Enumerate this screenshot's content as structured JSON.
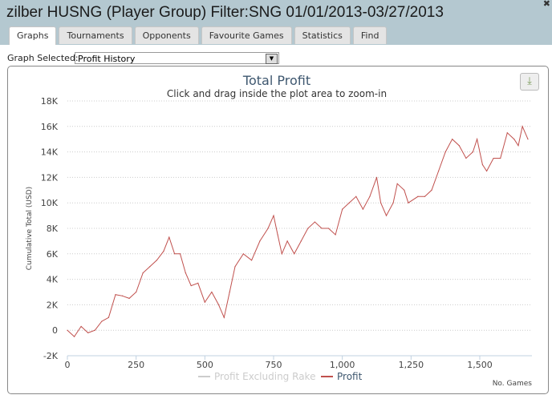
{
  "window": {
    "title": "zilber HUSNG (Player Group) Filter:SNG 01/01/2013-03/27/2013",
    "close_icon": "close-icon"
  },
  "tabs": [
    {
      "label": "Graphs",
      "active": true
    },
    {
      "label": "Tournaments"
    },
    {
      "label": "Opponents"
    },
    {
      "label": "Favourite Games"
    },
    {
      "label": "Statistics"
    },
    {
      "label": "Find"
    }
  ],
  "graph_select": {
    "label": "Graph Selected:",
    "value": "Profit History"
  },
  "chart_data": {
    "type": "line",
    "title": "Total Profit",
    "subtitle": "Click and drag inside the plot area to zoom-in",
    "xlabel": "No. Games",
    "ylabel": "Cumulative Total (USD)",
    "xlim": [
      0,
      1690
    ],
    "ylim": [
      -2000,
      18000
    ],
    "x_ticks": [
      "0",
      "250",
      "500",
      "750",
      "1,000",
      "1,250",
      "1,500"
    ],
    "y_ticks": [
      "-2K",
      "0",
      "2K",
      "4K",
      "6K",
      "8K",
      "10K",
      "12K",
      "14K",
      "16K",
      "18K"
    ],
    "grid": "horizontal dotted",
    "legend": [
      {
        "name": "Profit Excluding Rake",
        "color": "#cccccc",
        "hidden": true
      },
      {
        "name": "Profit",
        "color": "#c0504d"
      }
    ],
    "legend_position": "bottom",
    "series": [
      {
        "name": "Profit",
        "color": "#c0504d",
        "x": [
          0,
          25,
          50,
          75,
          100,
          125,
          150,
          175,
          200,
          225,
          250,
          275,
          300,
          325,
          350,
          370,
          390,
          410,
          430,
          450,
          475,
          500,
          525,
          550,
          570,
          590,
          610,
          640,
          670,
          700,
          730,
          750,
          765,
          780,
          800,
          825,
          850,
          875,
          900,
          925,
          950,
          975,
          1000,
          1025,
          1050,
          1075,
          1100,
          1125,
          1140,
          1160,
          1185,
          1200,
          1225,
          1240,
          1275,
          1300,
          1325,
          1350,
          1375,
          1400,
          1425,
          1450,
          1475,
          1490,
          1510,
          1525,
          1550,
          1575,
          1600,
          1625,
          1640,
          1655,
          1675
        ],
        "y": [
          0,
          -500,
          300,
          -200,
          0,
          700,
          1000,
          2800,
          2700,
          2500,
          3000,
          4500,
          5000,
          5500,
          6200,
          7300,
          6000,
          6000,
          4500,
          3500,
          3700,
          2200,
          3000,
          2000,
          1000,
          3000,
          5000,
          6000,
          5500,
          7000,
          8000,
          9000,
          7500,
          6000,
          7000,
          6000,
          7000,
          8000,
          8500,
          8000,
          8000,
          7500,
          9500,
          10000,
          10500,
          9500,
          10500,
          12000,
          10000,
          9000,
          10000,
          11500,
          11000,
          10000,
          10500,
          10500,
          11000,
          12500,
          14000,
          15000,
          14500,
          13500,
          14000,
          15000,
          13000,
          12500,
          13500,
          13500,
          15500,
          15000,
          14500,
          16000,
          15000
        ]
      }
    ]
  }
}
